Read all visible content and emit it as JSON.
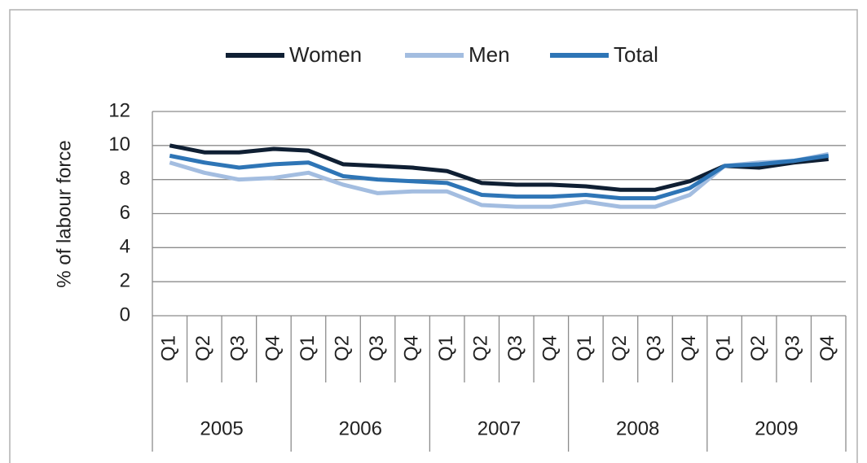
{
  "chart_data": {
    "type": "line",
    "ylabel": "% of labour force",
    "categories": [
      "Q1",
      "Q2",
      "Q3",
      "Q4",
      "Q1",
      "Q2",
      "Q3",
      "Q4",
      "Q1",
      "Q2",
      "Q3",
      "Q4",
      "Q1",
      "Q2",
      "Q3",
      "Q4",
      "Q1",
      "Q2",
      "Q3",
      "Q4"
    ],
    "groups": [
      "2005",
      "2006",
      "2007",
      "2008",
      "2009"
    ],
    "series": [
      {
        "name": "Women",
        "color": "#0f1f33",
        "values": [
          10.0,
          9.6,
          9.6,
          9.8,
          9.7,
          8.9,
          8.8,
          8.7,
          8.5,
          7.8,
          7.7,
          7.7,
          7.6,
          7.4,
          7.4,
          7.9,
          8.8,
          8.7,
          9.0,
          9.2
        ]
      },
      {
        "name": "Men",
        "color": "#a3bde0",
        "values": [
          9.0,
          8.4,
          8.0,
          8.1,
          8.4,
          7.7,
          7.2,
          7.3,
          7.3,
          6.5,
          6.4,
          6.4,
          6.7,
          6.4,
          6.4,
          7.1,
          8.8,
          9.0,
          9.1,
          9.5
        ]
      },
      {
        "name": "Total",
        "color": "#2e75b6",
        "values": [
          9.4,
          9.0,
          8.7,
          8.9,
          9.0,
          8.2,
          8.0,
          7.9,
          7.8,
          7.1,
          7.0,
          7.0,
          7.1,
          6.9,
          6.9,
          7.5,
          8.8,
          8.9,
          9.1,
          9.4
        ]
      }
    ],
    "ylim": [
      0,
      12
    ],
    "yticks": [
      0,
      2,
      4,
      6,
      8,
      10,
      12
    ],
    "grid": true,
    "legend": "top"
  }
}
